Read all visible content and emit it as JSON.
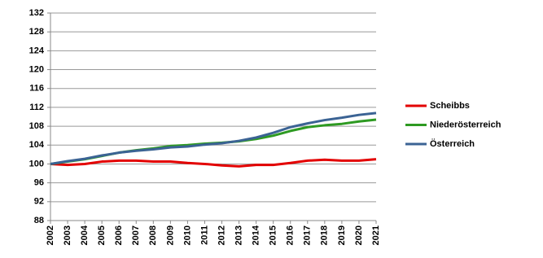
{
  "chart_data": {
    "type": "line",
    "x": [
      2002,
      2003,
      2004,
      2005,
      2006,
      2007,
      2008,
      2009,
      2010,
      2011,
      2012,
      2013,
      2014,
      2015,
      2016,
      2017,
      2018,
      2019,
      2020,
      2021
    ],
    "xlim": [
      2002,
      2021
    ],
    "series": [
      {
        "name": "Scheibbs",
        "color": "#e30000",
        "values": [
          100,
          99.8,
          100,
          100.5,
          100.7,
          100.7,
          100.5,
          100.5,
          100.2,
          100,
          99.7,
          99.5,
          99.8,
          99.8,
          100.2,
          100.7,
          100.9,
          100.7,
          100.7,
          101
        ]
      },
      {
        "name": "Niederösterreich",
        "color": "#2e9a22",
        "values": [
          100,
          100.5,
          101,
          101.7,
          102.4,
          102.9,
          103.3,
          103.8,
          104,
          104.3,
          104.5,
          104.8,
          105.3,
          106,
          107,
          107.8,
          108.2,
          108.5,
          109,
          109.4
        ]
      },
      {
        "name": "Österreich",
        "color": "#3b6394",
        "values": [
          100,
          100.6,
          101.1,
          101.8,
          102.4,
          102.8,
          103.1,
          103.5,
          103.7,
          104.1,
          104.4,
          104.9,
          105.6,
          106.6,
          107.8,
          108.6,
          109.3,
          109.8,
          110.4,
          110.8
        ]
      }
    ],
    "ylim": [
      88,
      132
    ],
    "yticks": [
      88,
      92,
      96,
      100,
      104,
      108,
      112,
      116,
      120,
      124,
      128,
      132
    ],
    "grid": true
  }
}
